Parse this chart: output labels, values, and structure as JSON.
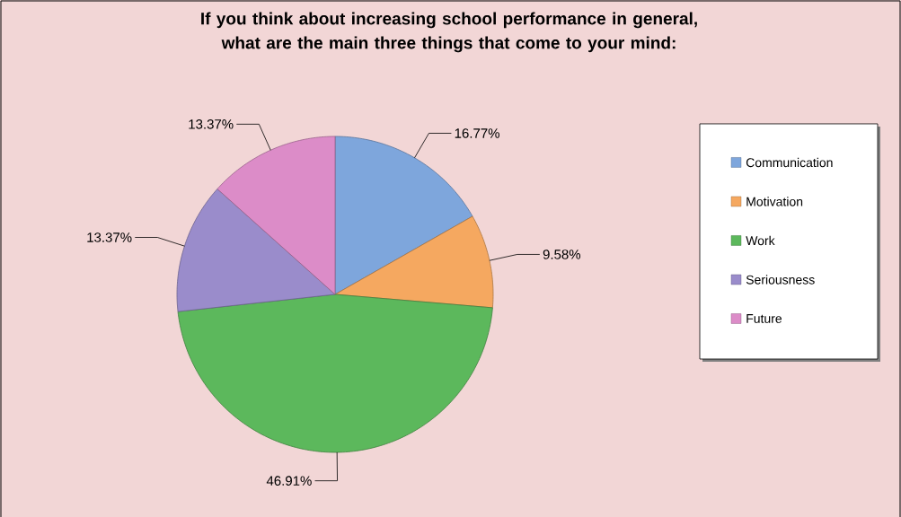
{
  "chart_data": {
    "type": "pie",
    "title": "If you think about increasing school performance in general, what are the main three things that come to your mind:",
    "categories": [
      "Communication",
      "Motivation",
      "Work",
      "Seriousness",
      "Future"
    ],
    "values": [
      16.77,
      9.58,
      46.91,
      13.37,
      13.37
    ],
    "value_labels": [
      "16.77%",
      "9.58%",
      "46.91%",
      "13.37%",
      "13.37%"
    ],
    "colors": [
      "#7ea6dc",
      "#f5a860",
      "#5cb85c",
      "#9a8ccb",
      "#dc8cc8"
    ],
    "legend": "right"
  }
}
